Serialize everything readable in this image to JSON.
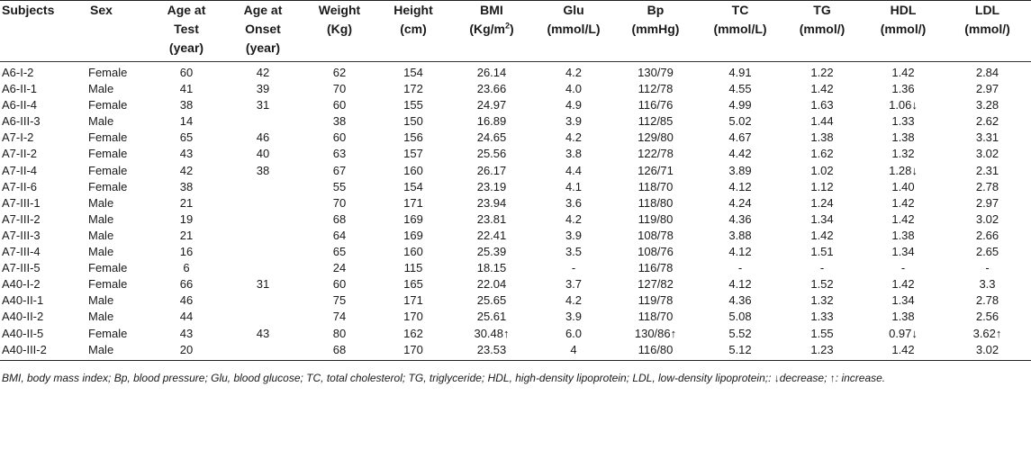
{
  "header": {
    "row1": [
      "Subjects",
      "Sex",
      "Age at",
      "Age at",
      "Weight",
      "Height",
      "BMI",
      "Glu",
      "Bp",
      "TC",
      "TG",
      "HDL",
      "LDL"
    ],
    "row2": [
      "",
      "",
      "Test",
      "Onset",
      "(Kg)",
      "(cm)",
      "(Kg/m",
      "(mmol/L)",
      "(mmHg)",
      "(mmol/L)",
      "(mmol/)",
      "(mmol/)",
      "(mmol/)"
    ],
    "bmi_unit_sup": "2",
    "bmi_unit_close": ")",
    "row3": [
      "",
      "",
      "(year)",
      "(year)",
      "",
      "",
      "",
      "",
      "",
      "",
      "",
      "",
      ""
    ]
  },
  "rows": [
    [
      "A6-I-2",
      "Female",
      "60",
      "42",
      "62",
      "154",
      "26.14",
      "4.2",
      "130/79",
      "4.91",
      "1.22",
      "1.42",
      "2.84"
    ],
    [
      "A6-II-1",
      "Male",
      "41",
      "39",
      "70",
      "172",
      "23.66",
      "4.0",
      "112/78",
      "4.55",
      "1.42",
      "1.36",
      "2.97"
    ],
    [
      "A6-II-4",
      "Female",
      "38",
      "31",
      "60",
      "155",
      "24.97",
      "4.9",
      "116/76",
      "4.99",
      "1.63",
      "1.06↓",
      "3.28"
    ],
    [
      "A6-III-3",
      "Male",
      "14",
      "",
      "38",
      "150",
      "16.89",
      "3.9",
      "112/85",
      "5.02",
      "1.44",
      "1.33",
      "2.62"
    ],
    [
      "A7-I-2",
      "Female",
      "65",
      "46",
      "60",
      "156",
      "24.65",
      "4.2",
      "129/80",
      "4.67",
      "1.38",
      "1.38",
      "3.31"
    ],
    [
      "A7-II-2",
      "Female",
      "43",
      "40",
      "63",
      "157",
      "25.56",
      "3.8",
      "122/78",
      "4.42",
      "1.62",
      "1.32",
      "3.02"
    ],
    [
      "A7-II-4",
      "Female",
      "42",
      "38",
      "67",
      "160",
      "26.17",
      "4.4",
      "126/71",
      "3.89",
      "1.02",
      "1.28↓",
      "2.31"
    ],
    [
      "A7-II-6",
      "Female",
      "38",
      "",
      "55",
      "154",
      "23.19",
      "4.1",
      "118/70",
      "4.12",
      "1.12",
      "1.40",
      "2.78"
    ],
    [
      "A7-III-1",
      "Male",
      "21",
      "",
      "70",
      "171",
      "23.94",
      "3.6",
      "118/80",
      "4.24",
      "1.24",
      "1.42",
      "2.97"
    ],
    [
      "A7-III-2",
      "Male",
      "19",
      "",
      "68",
      "169",
      "23.81",
      "4.2",
      "119/80",
      "4.36",
      "1.34",
      "1.42",
      "3.02"
    ],
    [
      "A7-III-3",
      "Male",
      "21",
      "",
      "64",
      "169",
      "22.41",
      "3.9",
      "108/78",
      "3.88",
      "1.42",
      "1.38",
      "2.66"
    ],
    [
      "A7-III-4",
      "Male",
      "16",
      "",
      "65",
      "160",
      "25.39",
      "3.5",
      "108/76",
      "4.12",
      "1.51",
      "1.34",
      "2.65"
    ],
    [
      "A7-III-5",
      "Female",
      "6",
      "",
      "24",
      "115",
      "18.15",
      "-",
      "116/78",
      "-",
      "-",
      "-",
      "-"
    ],
    [
      "A40-I-2",
      "Female",
      "66",
      "31",
      "60",
      "165",
      "22.04",
      "3.7",
      "127/82",
      "4.12",
      "1.52",
      "1.42",
      "3.3"
    ],
    [
      "A40-II-1",
      "Male",
      "46",
      "",
      "75",
      "171",
      "25.65",
      "4.2",
      "119/78",
      "4.36",
      "1.32",
      "1.34",
      "2.78"
    ],
    [
      "A40-II-2",
      "Male",
      "44",
      "",
      "74",
      "170",
      "25.61",
      "3.9",
      "118/70",
      "5.08",
      "1.33",
      "1.38",
      "2.56"
    ],
    [
      "A40-II-5",
      "Female",
      "43",
      "43",
      "80",
      "162",
      "30.48↑",
      "6.0",
      "130/86↑",
      "5.52",
      "1.55",
      "0.97↓",
      "3.62↑"
    ],
    [
      "A40-III-2",
      "Male",
      "20",
      "",
      "68",
      "170",
      "23.53",
      "4",
      "116/80",
      "5.12",
      "1.23",
      "1.42",
      "3.02"
    ]
  ],
  "footnote": "BMI, body mass index; Bp, blood pressure; Glu, blood glucose; TC, total cholesterol; TG, triglyceride; HDL, high-density lipoprotein; LDL, low-density lipoprotein;: ↓decrease; ↑: increase."
}
